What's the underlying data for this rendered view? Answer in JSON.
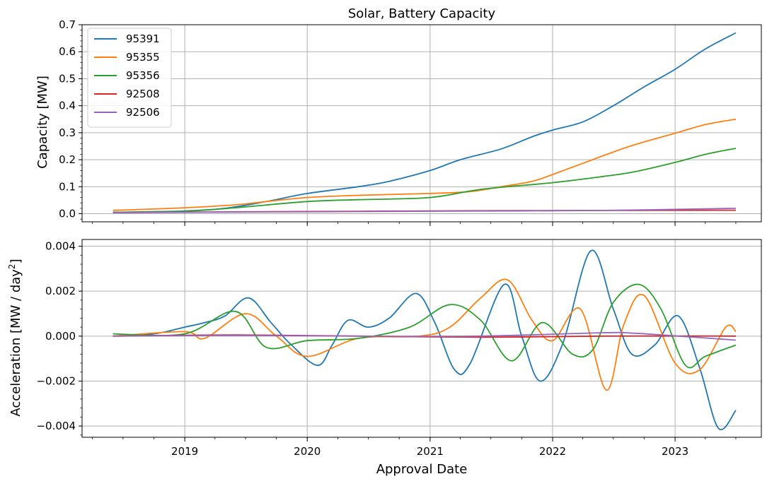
{
  "chart_data": [
    {
      "type": "line",
      "title": "Solar, Battery Capacity",
      "ylabel": "Capacity [MW]",
      "xlabel": "",
      "x_axis": "date",
      "xlim": [
        "2018-03-01",
        "2023-09-15"
      ],
      "ylim": [
        -0.03,
        0.7
      ],
      "y_ticks": [
        0.0,
        0.1,
        0.2,
        0.3,
        0.4,
        0.5,
        0.6,
        0.7
      ],
      "y_tick_labels": [
        "0.0",
        "0.1",
        "0.2",
        "0.3",
        "0.4",
        "0.5",
        "0.6",
        "0.7"
      ],
      "grid": true,
      "legend_position": "top-left",
      "series": [
        {
          "name": "95391",
          "color": "#1f77b4",
          "x": [
            "2018-06-01",
            "2018-09-01",
            "2019-01-01",
            "2019-05-01",
            "2019-09-01",
            "2020-01-01",
            "2020-06-01",
            "2020-09-01",
            "2021-01-01",
            "2021-04-01",
            "2021-08-01",
            "2021-11-01",
            "2022-01-01",
            "2022-04-01",
            "2022-07-01",
            "2022-10-01",
            "2023-01-01",
            "2023-04-01",
            "2023-07-01"
          ],
          "y": [
            0.005,
            0.007,
            0.01,
            0.02,
            0.045,
            0.075,
            0.1,
            0.12,
            0.16,
            0.2,
            0.24,
            0.285,
            0.31,
            0.34,
            0.4,
            0.47,
            0.535,
            0.61,
            0.67
          ]
        },
        {
          "name": "95355",
          "color": "#ff7f0e",
          "x": [
            "2018-06-01",
            "2019-01-01",
            "2019-06-01",
            "2019-09-01",
            "2020-01-01",
            "2020-06-01",
            "2021-01-01",
            "2021-05-01",
            "2021-08-01",
            "2021-11-01",
            "2022-01-01",
            "2022-06-01",
            "2022-09-01",
            "2023-01-01",
            "2023-04-01",
            "2023-07-01"
          ],
          "y": [
            0.012,
            0.022,
            0.033,
            0.045,
            0.06,
            0.068,
            0.075,
            0.082,
            0.1,
            0.12,
            0.145,
            0.215,
            0.255,
            0.298,
            0.33,
            0.35
          ]
        },
        {
          "name": "95356",
          "color": "#2ca02c",
          "x": [
            "2018-06-01",
            "2019-01-01",
            "2019-06-01",
            "2020-01-01",
            "2020-06-01",
            "2021-01-01",
            "2021-06-01",
            "2022-01-01",
            "2022-06-01",
            "2022-09-01",
            "2023-01-01",
            "2023-04-01",
            "2023-07-01"
          ],
          "y": [
            0.005,
            0.009,
            0.022,
            0.045,
            0.052,
            0.06,
            0.09,
            0.115,
            0.138,
            0.155,
            0.19,
            0.22,
            0.242
          ]
        },
        {
          "name": "92508",
          "color": "#d62728",
          "x": [
            "2018-06-01",
            "2019-06-01",
            "2020-06-01",
            "2021-06-01",
            "2022-06-01",
            "2023-07-01"
          ],
          "y": [
            0.004,
            0.007,
            0.009,
            0.011,
            0.012,
            0.013
          ]
        },
        {
          "name": "92506",
          "color": "#9467bd",
          "x": [
            "2018-06-01",
            "2019-06-01",
            "2020-06-01",
            "2021-06-01",
            "2022-06-01",
            "2023-07-01"
          ],
          "y": [
            0.004,
            0.006,
            0.008,
            0.01,
            0.012,
            0.02
          ]
        }
      ]
    },
    {
      "type": "line",
      "title": "",
      "ylabel_main": "Acceleration [MW / day",
      "ylabel_sup": "2",
      "ylabel_end": "]",
      "xlabel": "Approval Date",
      "x_axis": "date",
      "xlim": [
        "2018-03-01",
        "2023-09-15"
      ],
      "ylim": [
        -0.0045,
        0.0043
      ],
      "y_ticks": [
        -0.004,
        -0.002,
        0.0,
        0.002,
        0.004
      ],
      "y_tick_labels": [
        "−0.004",
        "−0.002",
        "0.000",
        "0.002",
        "0.004"
      ],
      "x_ticks": [
        "2019-01-01",
        "2020-01-01",
        "2021-01-01",
        "2022-01-01",
        "2023-01-01"
      ],
      "x_tick_labels": [
        "2019",
        "2020",
        "2021",
        "2022",
        "2023"
      ],
      "grid": true,
      "series": [
        {
          "name": "95391",
          "color": "#1f77b4",
          "x": [
            "2018-06-01",
            "2018-10-01",
            "2019-01-01",
            "2019-03-01",
            "2019-05-01",
            "2019-07-10",
            "2019-09-15",
            "2019-11-15",
            "2020-02-01",
            "2020-03-15",
            "2020-05-01",
            "2020-07-01",
            "2020-09-01",
            "2020-11-20",
            "2021-01-15",
            "2021-03-15",
            "2021-05-01",
            "2021-08-10",
            "2021-10-01",
            "2021-11-25",
            "2022-02-01",
            "2022-04-25",
            "2022-07-01",
            "2022-08-25",
            "2022-11-01",
            "2023-01-10",
            "2023-03-15",
            "2023-05-10",
            "2023-07-01"
          ],
          "y": [
            0,
            0.0001,
            0.0004,
            0.0006,
            0.0009,
            0.0017,
            0.0006,
            -0.0004,
            -0.0013,
            -0.0004,
            0.0007,
            0.0004,
            0.0008,
            0.0019,
            0.0006,
            -0.0015,
            -0.0012,
            0.0023,
            0,
            -0.002,
            -0.0003,
            0.0038,
            0.0012,
            -0.0008,
            -0.0004,
            0.0009,
            -0.0014,
            -0.0041,
            -0.0033
          ]
        },
        {
          "name": "95355",
          "color": "#ff7f0e",
          "x": [
            "2018-06-01",
            "2019-01-01",
            "2019-03-01",
            "2019-07-01",
            "2019-10-01",
            "2020-01-01",
            "2020-06-01",
            "2020-12-01",
            "2021-03-01",
            "2021-06-01",
            "2021-08-20",
            "2021-11-01",
            "2022-01-01",
            "2022-03-25",
            "2022-06-10",
            "2022-08-01",
            "2022-10-01",
            "2023-01-01",
            "2023-03-15",
            "2023-06-01",
            "2023-07-01"
          ],
          "y": [
            0,
            0.0002,
            -0.0001,
            0.001,
            0,
            -0.0009,
            -0.0001,
            0,
            0.0004,
            0.0017,
            0.0025,
            0.0007,
            -0.0002,
            0.0012,
            -0.0024,
            0.0005,
            0.0018,
            -0.0012,
            -0.0015,
            0.0004,
            0.0002
          ]
        },
        {
          "name": "95356",
          "color": "#2ca02c",
          "x": [
            "2018-06-01",
            "2019-01-01",
            "2019-06-01",
            "2019-09-01",
            "2020-01-01",
            "2020-06-01",
            "2020-11-01",
            "2021-03-01",
            "2021-06-01",
            "2021-09-01",
            "2021-12-01",
            "2022-03-01",
            "2022-05-01",
            "2022-07-01",
            "2022-09-15",
            "2022-11-20",
            "2023-02-01",
            "2023-04-01",
            "2023-07-01"
          ],
          "y": [
            0.0001,
            0.0001,
            0.0011,
            -0.0005,
            -0.0002,
            -0.0001,
            0.0004,
            0.0014,
            0.0007,
            -0.0011,
            0.0006,
            -0.0008,
            -0.0006,
            0.0015,
            0.0023,
            0.0012,
            -0.0013,
            -0.0009,
            -0.0004
          ]
        },
        {
          "name": "92508",
          "color": "#d62728",
          "x": [
            "2018-06-01",
            "2019-06-01",
            "2020-06-01",
            "2021-06-01",
            "2022-06-01",
            "2023-07-01"
          ],
          "y": [
            0,
            5e-05,
            0,
            -5e-05,
            0,
            0
          ]
        },
        {
          "name": "92506",
          "color": "#9467bd",
          "x": [
            "2018-06-01",
            "2019-06-01",
            "2020-06-01",
            "2021-06-01",
            "2022-06-01",
            "2022-09-01",
            "2023-03-01",
            "2023-07-01"
          ],
          "y": [
            0,
            3e-05,
            0,
            0,
            0.00015,
            0.00013,
            -5e-05,
            -0.00018
          ]
        }
      ]
    }
  ]
}
